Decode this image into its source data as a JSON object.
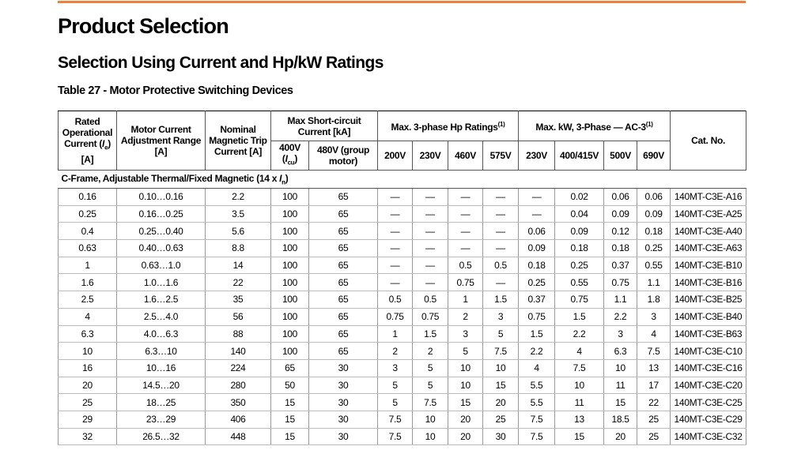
{
  "header": {
    "title": "Product Selection",
    "subtitle": "Selection Using Current and Hp/kW Ratings"
  },
  "table": {
    "caption": "Table 27 - Motor Protective Switching Devices",
    "columns": {
      "rated": [
        "Rated Operational Current (",
        "I",
        "e",
        ") [A]"
      ],
      "adjust": "Motor Current Adjustment Range [A]",
      "trip": "Nominal Magnetic Trip Current [A]",
      "short": "Max Short-circuit Current [kA]",
      "v400": [
        "400V (",
        "I",
        "cu",
        ")"
      ],
      "v480": "480V (group motor)",
      "hp": [
        "Max. 3-phase Hp Ratings",
        "(1)"
      ],
      "hp_volts": [
        "200V",
        "230V",
        "460V",
        "575V"
      ],
      "kw": [
        "Max. kW, 3-Phase — AC-3",
        "(1)"
      ],
      "kw_volts": [
        "230V",
        "400/415V",
        "500V",
        "690V"
      ],
      "cat": "Cat. No."
    },
    "section": [
      "C-Frame, Adjustable Thermal/Fixed Magnetic (14 x ",
      "I",
      "n",
      ")"
    ],
    "rows": [
      [
        "0.16",
        "0.10…0.16",
        "2.2",
        "100",
        "65",
        "—",
        "—",
        "—",
        "—",
        "—",
        "0.02",
        "0.06",
        "0.06",
        "140MT-C3E-A16"
      ],
      [
        "0.25",
        "0.16…0.25",
        "3.5",
        "100",
        "65",
        "—",
        "—",
        "—",
        "—",
        "—",
        "0.04",
        "0.09",
        "0.09",
        "140MT-C3E-A25"
      ],
      [
        "0.4",
        "0.25…0.40",
        "5.6",
        "100",
        "65",
        "—",
        "—",
        "—",
        "—",
        "0.06",
        "0.09",
        "0.12",
        "0.18",
        "140MT-C3E-A40"
      ],
      [
        "0.63",
        "0.40…0.63",
        "8.8",
        "100",
        "65",
        "—",
        "—",
        "—",
        "—",
        "0.09",
        "0.18",
        "0.18",
        "0.25",
        "140MT-C3E-A63"
      ],
      [
        "1",
        "0.63…1.0",
        "14",
        "100",
        "65",
        "—",
        "—",
        "0.5",
        "0.5",
        "0.18",
        "0.25",
        "0.37",
        "0.55",
        "140MT-C3E-B10"
      ],
      [
        "1.6",
        "1.0…1.6",
        "22",
        "100",
        "65",
        "—",
        "—",
        "0.75",
        "—",
        "0.25",
        "0.55",
        "0.75",
        "1.1",
        "140MT-C3E-B16"
      ],
      [
        "2.5",
        "1.6…2.5",
        "35",
        "100",
        "65",
        "0.5",
        "0.5",
        "1",
        "1.5",
        "0.37",
        "0.75",
        "1.1",
        "1.8",
        "140MT-C3E-B25"
      ],
      [
        "4",
        "2.5…4.0",
        "56",
        "100",
        "65",
        "0.75",
        "0.75",
        "2",
        "3",
        "0.75",
        "1.5",
        "2.2",
        "3",
        "140MT-C3E-B40"
      ],
      [
        "6.3",
        "4.0…6.3",
        "88",
        "100",
        "65",
        "1",
        "1.5",
        "3",
        "5",
        "1.5",
        "2.2",
        "3",
        "4",
        "140MT-C3E-B63"
      ],
      [
        "10",
        "6.3…10",
        "140",
        "100",
        "65",
        "2",
        "2",
        "5",
        "7.5",
        "2.2",
        "4",
        "6.3",
        "7.5",
        "140MT-C3E-C10"
      ],
      [
        "16",
        "10…16",
        "224",
        "65",
        "30",
        "3",
        "5",
        "10",
        "10",
        "4",
        "7.5",
        "10",
        "13",
        "140MT-C3E-C16"
      ],
      [
        "20",
        "14.5…20",
        "280",
        "50",
        "30",
        "5",
        "5",
        "10",
        "15",
        "5.5",
        "10",
        "11",
        "17",
        "140MT-C3E-C20"
      ],
      [
        "25",
        "18…25",
        "350",
        "15",
        "30",
        "5",
        "7.5",
        "15",
        "20",
        "5.5",
        "11",
        "15",
        "22",
        "140MT-C3E-C25"
      ],
      [
        "29",
        "23…29",
        "406",
        "15",
        "30",
        "7.5",
        "10",
        "20",
        "25",
        "7.5",
        "13",
        "18.5",
        "25",
        "140MT-C3E-C29"
      ],
      [
        "32",
        "26.5…32",
        "448",
        "15",
        "30",
        "7.5",
        "10",
        "20",
        "30",
        "7.5",
        "15",
        "20",
        "25",
        "140MT-C3E-C32"
      ]
    ]
  }
}
